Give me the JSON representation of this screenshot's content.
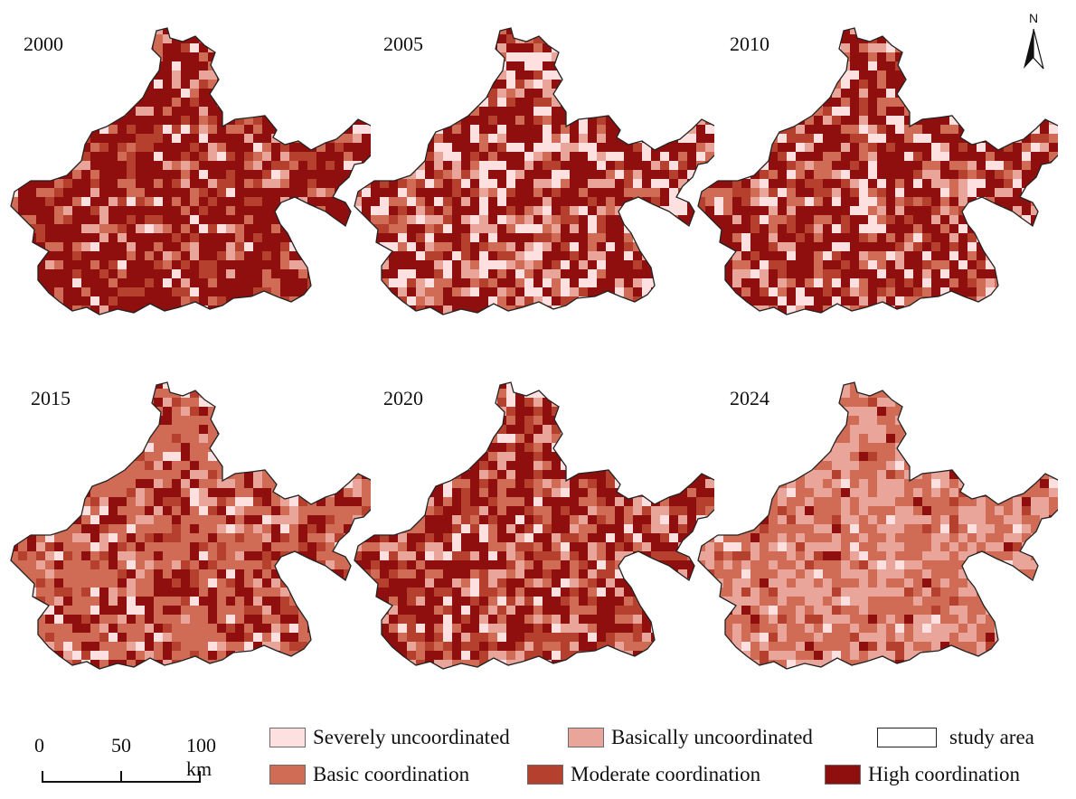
{
  "map": {
    "panels": [
      {
        "year": "2000",
        "level_mix": [
          0.05,
          0.08,
          0.14,
          0.13,
          0.6
        ]
      },
      {
        "year": "2005",
        "level_mix": [
          0.2,
          0.12,
          0.12,
          0.12,
          0.44
        ]
      },
      {
        "year": "2010",
        "level_mix": [
          0.12,
          0.12,
          0.13,
          0.13,
          0.5
        ]
      },
      {
        "year": "2015",
        "level_mix": [
          0.06,
          0.12,
          0.47,
          0.13,
          0.22
        ]
      },
      {
        "year": "2020",
        "level_mix": [
          0.07,
          0.12,
          0.15,
          0.2,
          0.46
        ]
      },
      {
        "year": "2024",
        "level_mix": [
          0.05,
          0.38,
          0.47,
          0.06,
          0.04
        ]
      }
    ],
    "north_label": "N",
    "scale_bar": {
      "labels": [
        "0",
        "50",
        "100 km"
      ]
    },
    "legend": {
      "items": [
        {
          "label": "Severely uncoordinated",
          "color": "#fde0df"
        },
        {
          "label": "Basically uncoordinated",
          "color": "#eaa59b"
        },
        {
          "label": "Basic coordination",
          "color": "#d06b55"
        },
        {
          "label": "Moderate coordination",
          "color": "#b5402e"
        },
        {
          "label": "High coordination",
          "color": "#8f0e0e"
        }
      ],
      "study_area_label": "study area"
    }
  }
}
